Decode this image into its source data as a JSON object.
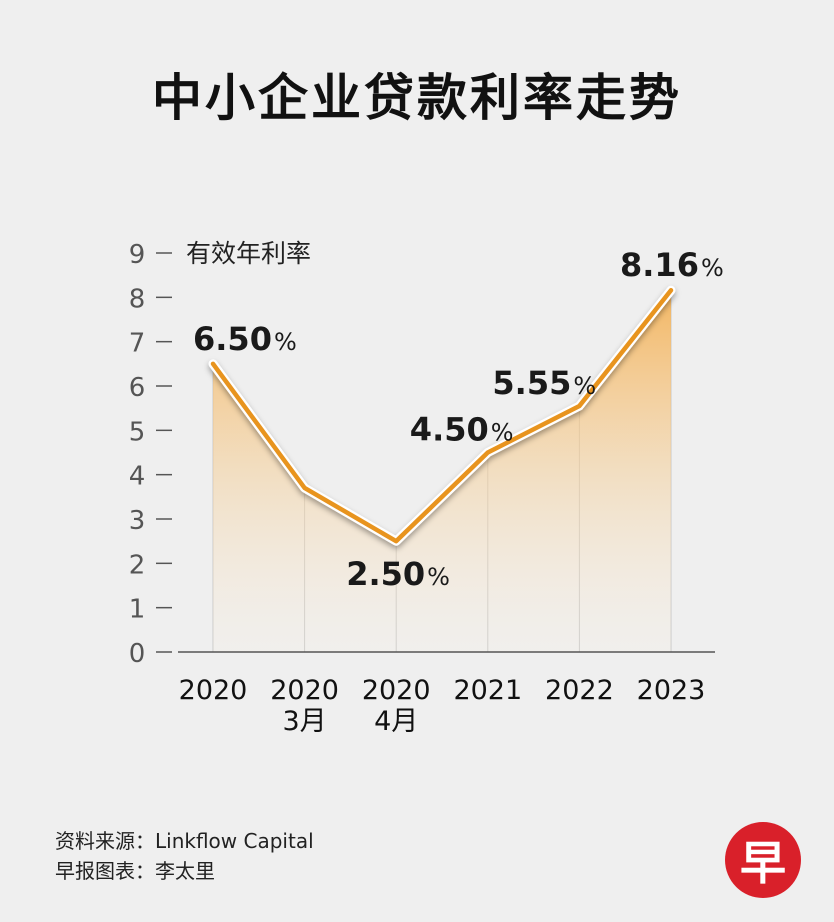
{
  "title": "中小企业贷款利率走势",
  "source_line": "资料来源：Linkflow Capital",
  "credit_line": "早报图表：李太里",
  "logo_char": "早",
  "chart_data": {
    "type": "area",
    "title": "中小企业贷款利率走势",
    "ylabel": "有效年利率",
    "ylim": [
      0,
      9
    ],
    "yticks": [
      0,
      1,
      2,
      3,
      4,
      5,
      6,
      7,
      8,
      9
    ],
    "grid": true,
    "categories": [
      [
        "2020"
      ],
      [
        "2020",
        "3月"
      ],
      [
        "2020",
        "4月"
      ],
      [
        "2021"
      ],
      [
        "2022"
      ],
      [
        "2023"
      ]
    ],
    "values": [
      6.5,
      3.7,
      2.5,
      4.5,
      5.55,
      8.16
    ],
    "data_labels": [
      {
        "index": 0,
        "value": "6.50",
        "unit": "%"
      },
      {
        "index": 2,
        "value": "2.50",
        "unit": "%"
      },
      {
        "index": 3,
        "value": "4.50",
        "unit": "%"
      },
      {
        "index": 4,
        "value": "5.55",
        "unit": "%"
      },
      {
        "index": 5,
        "value": "8.16",
        "unit": "%"
      }
    ],
    "colors": {
      "line": "#e8941e",
      "fill_top": "#f3b35a",
      "fill_bottom": "#f7efe2",
      "axis": "#555555",
      "grid": "#c8c8c8"
    }
  }
}
